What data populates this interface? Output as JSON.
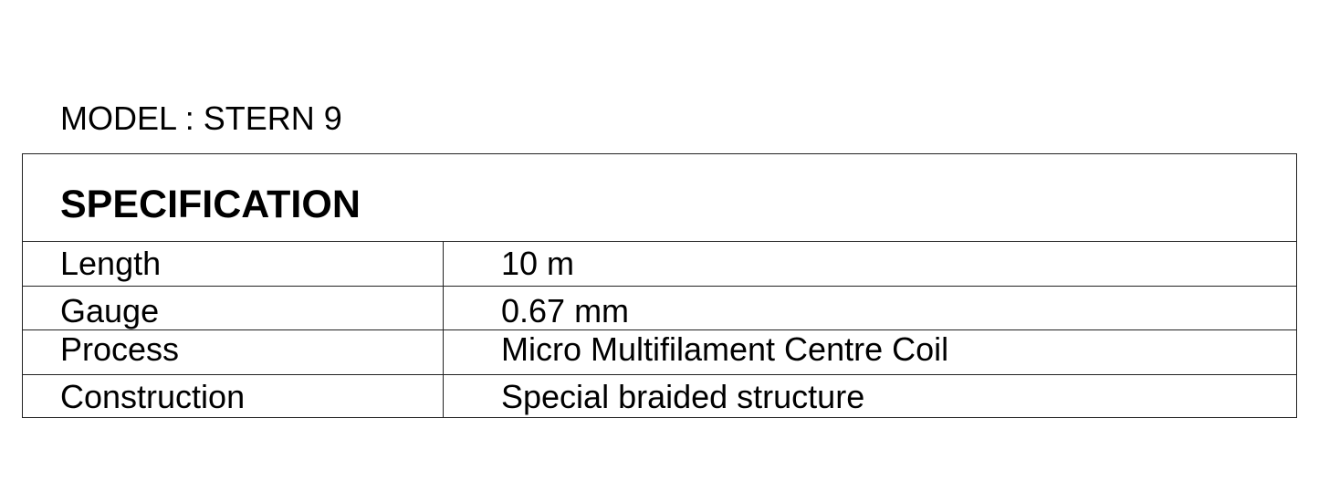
{
  "model_label": "MODEL : STERN 9",
  "table": {
    "heading": "SPECIFICATION",
    "rows": [
      {
        "label": "Length",
        "value": "10 m"
      },
      {
        "label": "Gauge",
        "value": "0.67 mm"
      },
      {
        "label": "Process",
        "value": "Micro Multifilament Centre Coil"
      },
      {
        "label": "Construction",
        "value": "Special braided structure"
      }
    ]
  }
}
